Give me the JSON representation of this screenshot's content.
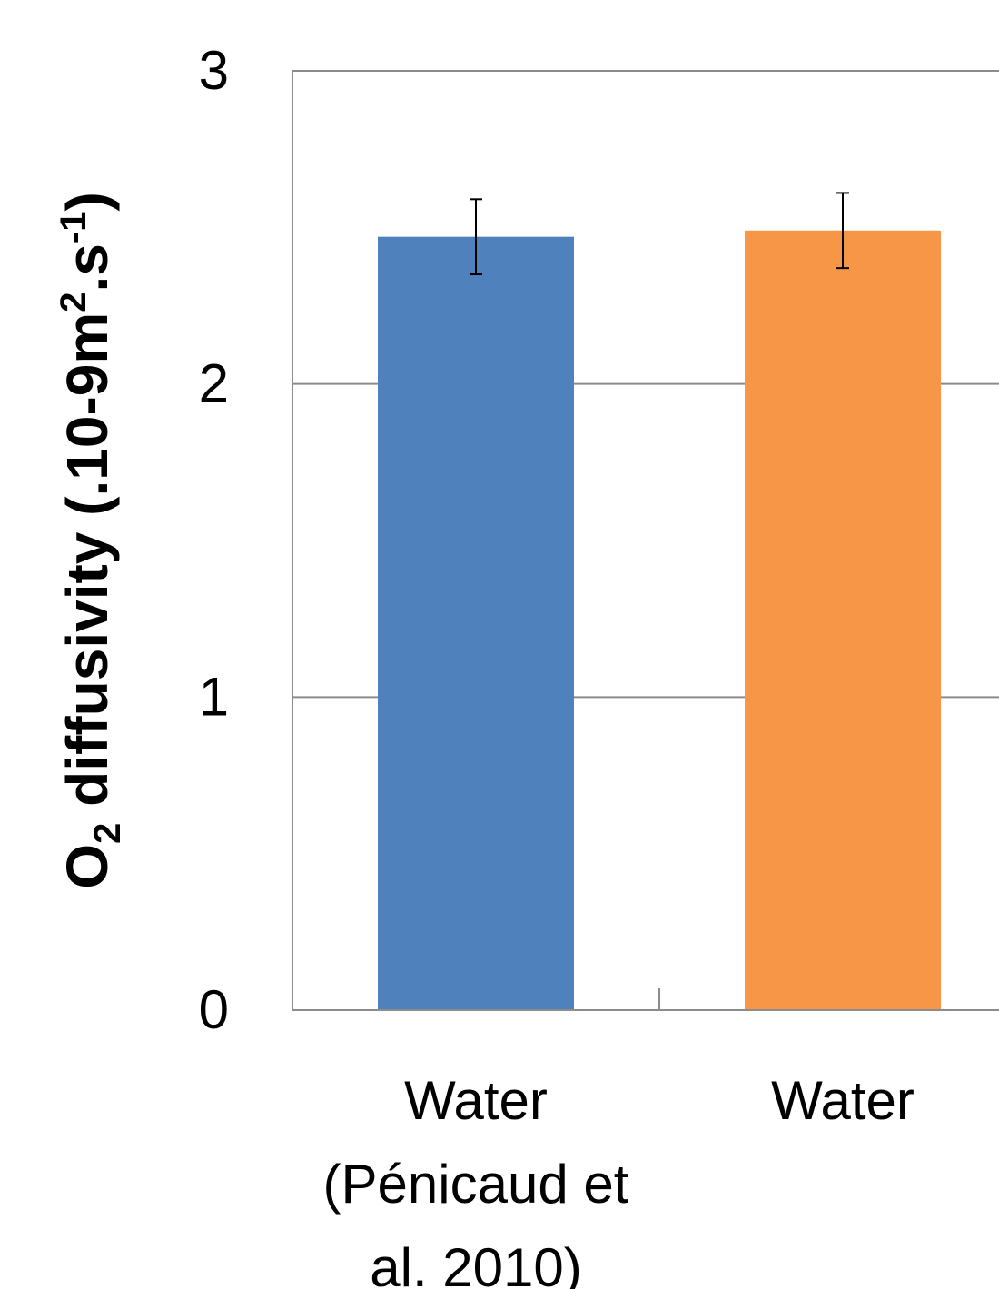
{
  "chart_data": {
    "type": "bar",
    "title": "",
    "xlabel": "",
    "ylabel": {
      "o": "O",
      "o_sub": "2",
      "main": " diffusivity (.10-9m",
      "sup1": "2",
      "mid": ".s",
      "sup2": "-1",
      "end": ")"
    },
    "ylim": [
      0,
      3
    ],
    "yticks": [
      0,
      1,
      2,
      3
    ],
    "grid": true,
    "legend": "none",
    "categories": [
      [
        "Water",
        "(Pénicaud et",
        "al. 2010)"
      ],
      [
        "Water"
      ]
    ],
    "values": [
      2.47,
      2.49
    ],
    "errors": [
      0.12,
      0.12
    ],
    "colors": [
      "#4f81bd",
      "#f79646"
    ]
  }
}
